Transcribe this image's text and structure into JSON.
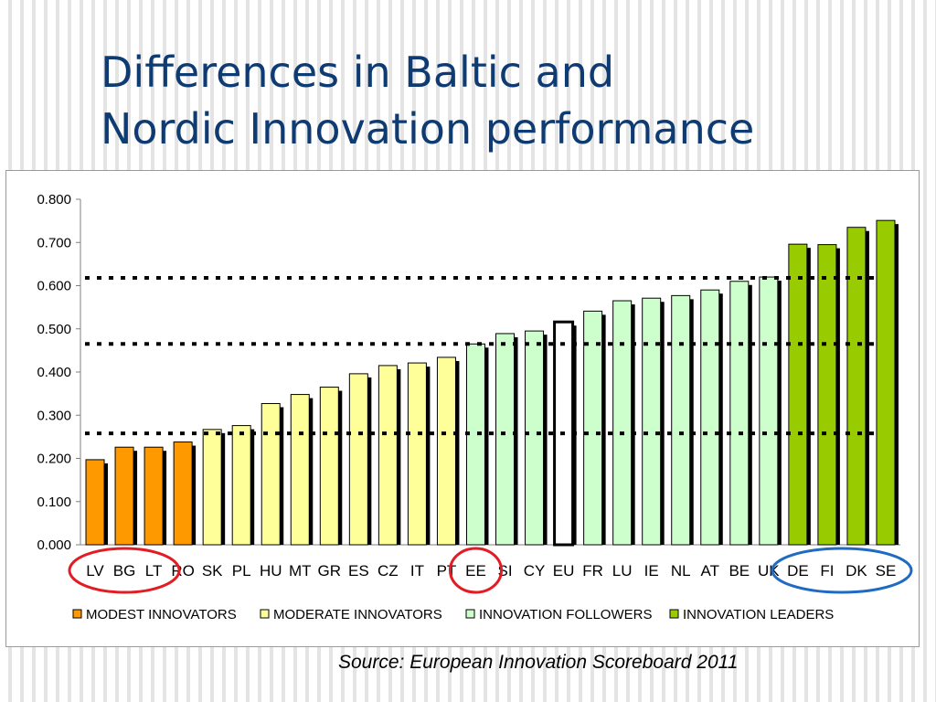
{
  "slide": {
    "title_line1": "Differences in Baltic and",
    "title_line2": "Nordic Innovation performance",
    "source": "Source: European Innovation Scoreboard 2011"
  },
  "colors": {
    "title": "#0f3b73",
    "modest": "#ff9900",
    "moderate": "#ffff99",
    "followers": "#ccffcc",
    "leaders": "#99cc00",
    "eu_fill": "#ffffff",
    "highlight_red": "#e31b23",
    "highlight_blue": "#1f6bc2"
  },
  "chart_data": {
    "type": "bar",
    "title": "",
    "xlabel": "",
    "ylabel": "",
    "ylim": [
      0,
      0.8
    ],
    "y_ticks": [
      "0.000",
      "0.100",
      "0.200",
      "0.300",
      "0.400",
      "0.500",
      "0.600",
      "0.700",
      "0.800"
    ],
    "categories": [
      "LV",
      "BG",
      "LT",
      "RO",
      "SK",
      "PL",
      "HU",
      "MT",
      "GR",
      "ES",
      "CZ",
      "IT",
      "PT",
      "EE",
      "SI",
      "CY",
      "EU",
      "FR",
      "LU",
      "IE",
      "NL",
      "AT",
      "BE",
      "UK",
      "DE",
      "FI",
      "DK",
      "SE"
    ],
    "values": [
      0.197,
      0.226,
      0.226,
      0.238,
      0.267,
      0.276,
      0.327,
      0.348,
      0.365,
      0.396,
      0.415,
      0.421,
      0.434,
      0.465,
      0.489,
      0.495,
      0.516,
      0.541,
      0.565,
      0.571,
      0.577,
      0.59,
      0.61,
      0.62,
      0.696,
      0.695,
      0.735,
      0.751
    ],
    "groups": [
      "modest",
      "modest",
      "modest",
      "modest",
      "moderate",
      "moderate",
      "moderate",
      "moderate",
      "moderate",
      "moderate",
      "moderate",
      "moderate",
      "moderate",
      "followers",
      "followers",
      "followers",
      "eu",
      "followers",
      "followers",
      "followers",
      "followers",
      "followers",
      "followers",
      "followers",
      "leaders",
      "leaders",
      "leaders",
      "leaders"
    ],
    "threshold_lines": [
      0.258,
      0.465,
      0.618
    ],
    "legend": {
      "placement": "bottom",
      "items": [
        {
          "key": "modest",
          "label": "MODEST INNOVATORS"
        },
        {
          "key": "moderate",
          "label": "MODERATE INNOVATORS"
        },
        {
          "key": "followers",
          "label": "INNOVATION FOLLOWERS"
        },
        {
          "key": "leaders",
          "label": "INNOVATION LEADERS"
        }
      ]
    },
    "highlighted": {
      "red": [
        [
          "LV",
          "BG",
          "LT"
        ],
        [
          "EE"
        ]
      ],
      "blue": [
        [
          "DE",
          "FI",
          "DK",
          "SE"
        ]
      ]
    },
    "grid": false
  }
}
